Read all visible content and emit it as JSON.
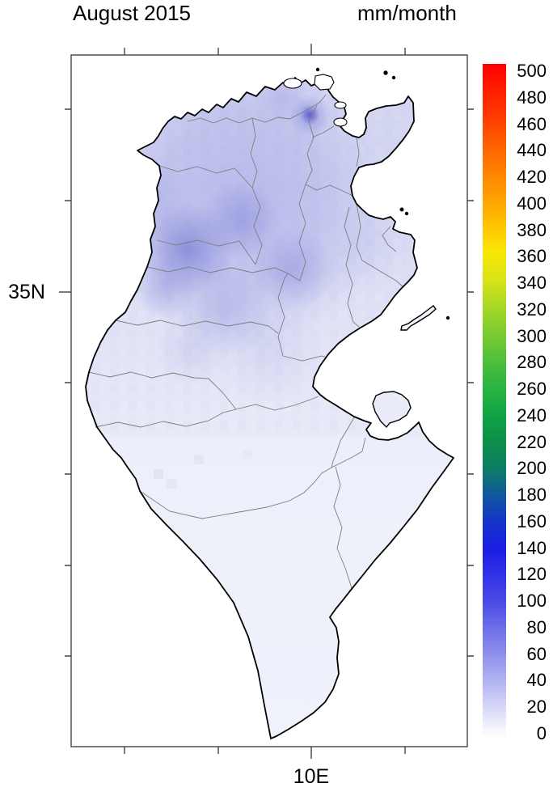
{
  "title": "August 2015",
  "units_label": "mm/month",
  "axes": {
    "lat_tick_label": "35N",
    "lon_tick_label": "10E"
  },
  "colorbar": {
    "labels": [
      "500",
      "480",
      "460",
      "440",
      "420",
      "400",
      "380",
      "360",
      "340",
      "320",
      "300",
      "280",
      "260",
      "240",
      "220",
      "200",
      "180",
      "160",
      "140",
      "120",
      "100",
      "80",
      "60",
      "40",
      "20",
      "0"
    ],
    "palette": [
      {
        "v": 500,
        "c": "#fe0000"
      },
      {
        "v": 480,
        "c": "#ff1e00"
      },
      {
        "v": 460,
        "c": "#ff3c00"
      },
      {
        "v": 440,
        "c": "#ff5f00"
      },
      {
        "v": 420,
        "c": "#ff8200"
      },
      {
        "v": 400,
        "c": "#ffa000"
      },
      {
        "v": 380,
        "c": "#ffc300"
      },
      {
        "v": 360,
        "c": "#f8e706"
      },
      {
        "v": 340,
        "c": "#d9e416"
      },
      {
        "v": 320,
        "c": "#a8d826"
      },
      {
        "v": 300,
        "c": "#7bcb31"
      },
      {
        "v": 280,
        "c": "#50c03a"
      },
      {
        "v": 260,
        "c": "#2bb441"
      },
      {
        "v": 240,
        "c": "#0fa544"
      },
      {
        "v": 220,
        "c": "#0d9048"
      },
      {
        "v": 200,
        "c": "#0c7e63"
      },
      {
        "v": 180,
        "c": "#10589c"
      },
      {
        "v": 160,
        "c": "#1335c8"
      },
      {
        "v": 140,
        "c": "#1b1ce4"
      },
      {
        "v": 120,
        "c": "#3132e8"
      },
      {
        "v": 100,
        "c": "#4b4ce5"
      },
      {
        "v": 80,
        "c": "#6f70e8"
      },
      {
        "v": 60,
        "c": "#9192ec"
      },
      {
        "v": 40,
        "c": "#b5b6f2"
      },
      {
        "v": 20,
        "c": "#dadbf8"
      },
      {
        "v": 0,
        "c": "#ffffff"
      }
    ],
    "min": 0,
    "max": 500,
    "step": 20
  }
}
